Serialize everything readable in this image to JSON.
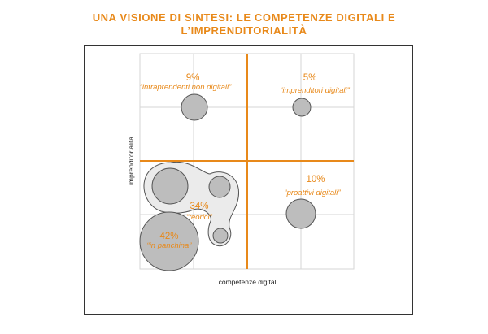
{
  "title_line1": "UNA VISIONE DI SINTESI: LE COMPETENZE DIGITALI E",
  "title_line2": "L’IMPRENDITORIALITÀ",
  "chart_data": {
    "type": "bubble-matrix",
    "xlabel": "competenze digitali",
    "ylabel": "imprenditorialità",
    "grid": true,
    "colors": {
      "accent": "#e8891a",
      "bubble": "#bdbdbd",
      "grid": "#d6d6d6",
      "frame": "#333333"
    },
    "quadrants": [
      {
        "pct": "9%",
        "label": "“intraprendenti non digitali”"
      },
      {
        "pct": "5%",
        "label": "“imprenditori digitali”"
      },
      {
        "pct": "10%",
        "label": "“proattivi digitali”"
      },
      {
        "pct": "34%",
        "label": "“teorici”"
      },
      {
        "pct": "42%",
        "label": "“in panchina”"
      }
    ]
  }
}
